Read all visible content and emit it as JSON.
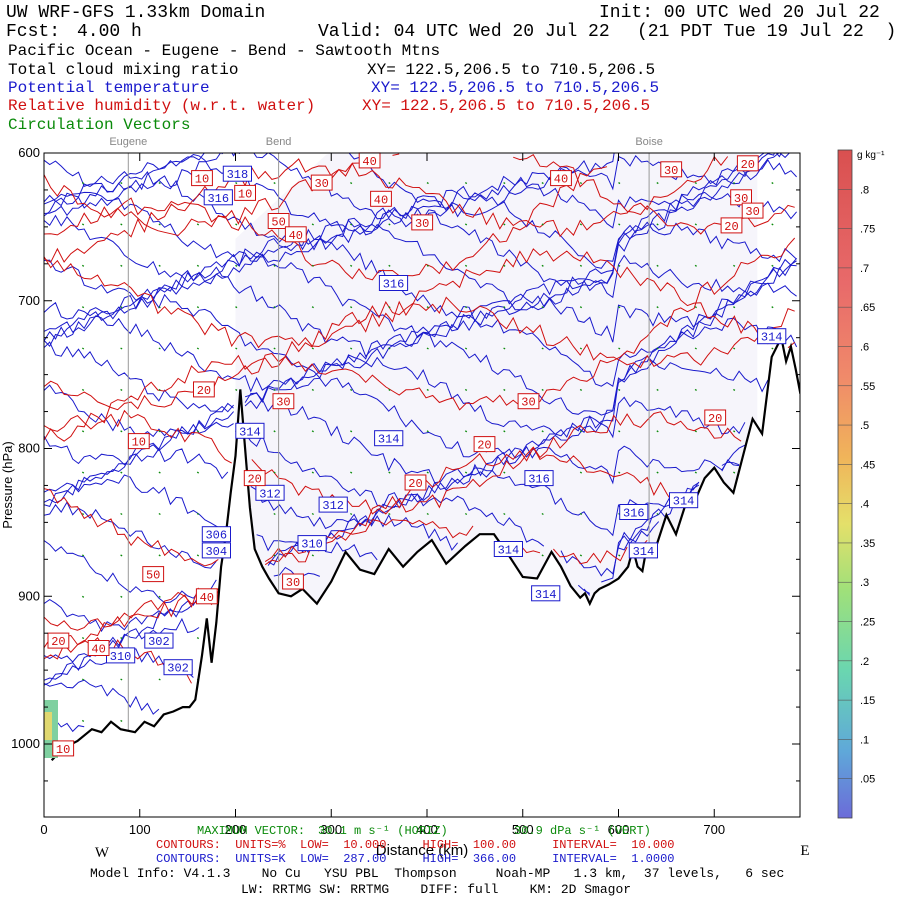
{
  "header": {
    "title": "UW WRF-GFS 1.33km Domain",
    "init": "Init: 00 UTC Wed 20 Jul 22",
    "fcst_label": "Fcst:",
    "fcst_value": "4.00 h",
    "valid": "Valid: 04 UTC Wed 20 Jul 22",
    "valid_local": "(21 PDT Tue 19 Jul 22  )",
    "region": "Pacific Ocean - Eugene - Bend - Sawtooth Mtns",
    "field1": "Total cloud mixing ratio",
    "field1_xy": "XY= 122.5,206.5 to 710.5,206.5",
    "field2": "Potential temperature",
    "field2_xy": "XY= 122.5,206.5 to 710.5,206.5",
    "field3": "Relative humidity (w.r.t. water)",
    "field3_xy": "XY= 122.5,206.5 to 710.5,206.5",
    "field4": "Circulation Vectors"
  },
  "colors": {
    "temperature": "#1a1acc",
    "humidity": "#d01010",
    "vectors": "#0a8a0a",
    "terrain": "#000000",
    "shade": "#f6f5fb"
  },
  "chart_data": {
    "type": "cross-section",
    "xlabel": "Distance (km)",
    "ylabel": "Pressure (hPa)",
    "x_range": [
      0,
      790
    ],
    "y_range": [
      1050,
      600
    ],
    "x_ticks": [
      "0",
      "100",
      "200",
      "300",
      "400",
      "500",
      "600",
      "700"
    ],
    "x_tick_values": [
      0,
      100,
      200,
      300,
      400,
      500,
      600,
      700
    ],
    "y_ticks": [
      "600",
      "700",
      "800",
      "900",
      "1000"
    ],
    "y_tick_values": [
      600,
      700,
      800,
      900,
      1000
    ],
    "locations": [
      {
        "name": "Eugene",
        "km": 88
      },
      {
        "name": "Bend",
        "km": 245
      },
      {
        "name": "Boise",
        "km": 632
      }
    ],
    "dir_west": "W",
    "dir_east": "E",
    "terrain_profile": {
      "km": [
        8,
        20,
        35,
        50,
        60,
        70,
        80,
        95,
        105,
        115,
        125,
        135,
        145,
        152,
        158,
        165,
        170,
        175,
        180,
        185,
        190,
        195,
        200,
        205,
        210,
        215,
        220,
        228,
        235,
        245,
        258,
        270,
        285,
        300,
        315,
        330,
        345,
        360,
        375,
        390,
        405,
        420,
        440,
        455,
        470,
        485,
        500,
        515,
        530,
        540,
        550,
        560,
        565,
        570,
        575,
        580,
        590,
        600,
        610,
        615,
        620,
        625,
        630,
        640,
        650,
        660,
        670,
        680,
        690,
        700,
        710,
        720,
        740,
        750,
        760,
        770,
        775,
        780,
        785,
        790
      ],
      "hPa": [
        1011,
        1003,
        998,
        990,
        992,
        985,
        990,
        992,
        985,
        988,
        980,
        978,
        975,
        975,
        970,
        940,
        915,
        945,
        918,
        880,
        858,
        830,
        805,
        760,
        800,
        840,
        868,
        880,
        888,
        898,
        900,
        895,
        905,
        890,
        870,
        882,
        885,
        868,
        880,
        870,
        862,
        878,
        866,
        858,
        858,
        872,
        887,
        888,
        870,
        880,
        893,
        901,
        898,
        905,
        898,
        895,
        892,
        888,
        880,
        868,
        880,
        883,
        865,
        865,
        845,
        858,
        838,
        835,
        820,
        813,
        823,
        830,
        780,
        790,
        738,
        725,
        741,
        731,
        746,
        763
      ]
    },
    "theta_contours": {
      "units": "K",
      "low": "287.00",
      "high": "366.00",
      "interval": "1.0000"
    },
    "rh_contours": {
      "units": "%",
      "low": "10.000",
      "high": "100.00",
      "interval": "10.000"
    },
    "theta_labels": [
      {
        "text": "318",
        "km": 202,
        "hPa": 614
      },
      {
        "text": "316",
        "km": 182,
        "hPa": 630
      },
      {
        "text": "316",
        "km": 365,
        "hPa": 688
      },
      {
        "text": "314",
        "km": 215,
        "hPa": 788
      },
      {
        "text": "314",
        "km": 360,
        "hPa": 793
      },
      {
        "text": "312",
        "km": 236,
        "hPa": 830
      },
      {
        "text": "312",
        "km": 302,
        "hPa": 838
      },
      {
        "text": "310",
        "km": 280,
        "hPa": 864
      },
      {
        "text": "306",
        "km": 180,
        "hPa": 858
      },
      {
        "text": "304",
        "km": 180,
        "hPa": 869
      },
      {
        "text": "302",
        "km": 120,
        "hPa": 930
      },
      {
        "text": "316",
        "km": 517,
        "hPa": 820
      },
      {
        "text": "316",
        "km": 616,
        "hPa": 843
      },
      {
        "text": "314",
        "km": 668,
        "hPa": 835
      },
      {
        "text": "314",
        "km": 485,
        "hPa": 868
      },
      {
        "text": "314",
        "km": 524,
        "hPa": 898
      },
      {
        "text": "314",
        "km": 626,
        "hPa": 869
      },
      {
        "text": "314",
        "km": 760,
        "hPa": 724
      },
      {
        "text": "310",
        "km": 80,
        "hPa": 940
      },
      {
        "text": "302",
        "km": 140,
        "hPa": 948
      }
    ],
    "rh_labels": [
      {
        "text": "10",
        "km": 165,
        "hPa": 617
      },
      {
        "text": "10",
        "km": 210,
        "hPa": 627
      },
      {
        "text": "30",
        "km": 290,
        "hPa": 620
      },
      {
        "text": "40",
        "km": 340,
        "hPa": 605
      },
      {
        "text": "40",
        "km": 540,
        "hPa": 617
      },
      {
        "text": "30",
        "km": 655,
        "hPa": 611
      },
      {
        "text": "20",
        "km": 735,
        "hPa": 607
      },
      {
        "text": "40",
        "km": 352,
        "hPa": 631
      },
      {
        "text": "30",
        "km": 395,
        "hPa": 647
      },
      {
        "text": "50",
        "km": 245,
        "hPa": 646
      },
      {
        "text": "40",
        "km": 263,
        "hPa": 655
      },
      {
        "text": "30",
        "km": 728,
        "hPa": 630
      },
      {
        "text": "30",
        "km": 740,
        "hPa": 639
      },
      {
        "text": "20",
        "km": 718,
        "hPa": 649
      },
      {
        "text": "20",
        "km": 167,
        "hPa": 760
      },
      {
        "text": "30",
        "km": 250,
        "hPa": 768
      },
      {
        "text": "10",
        "km": 99,
        "hPa": 795
      },
      {
        "text": "20",
        "km": 220,
        "hPa": 820
      },
      {
        "text": "20",
        "km": 388,
        "hPa": 823
      },
      {
        "text": "20",
        "km": 460,
        "hPa": 797
      },
      {
        "text": "30",
        "km": 506,
        "hPa": 768
      },
      {
        "text": "20",
        "km": 701,
        "hPa": 779
      },
      {
        "text": "50",
        "km": 114,
        "hPa": 885
      },
      {
        "text": "40",
        "km": 170,
        "hPa": 900
      },
      {
        "text": "30",
        "km": 260,
        "hPa": 890
      },
      {
        "text": "20",
        "km": 15,
        "hPa": 930
      },
      {
        "text": "40",
        "km": 57,
        "hPa": 935
      },
      {
        "text": "10",
        "km": 20,
        "hPa": 1003
      }
    ],
    "colorbar": {
      "units": "g kg⁻¹",
      "ticks": [
        ".8",
        ".75",
        ".7",
        ".65",
        ".6",
        ".55",
        ".5",
        ".45",
        ".4",
        ".35",
        ".3",
        ".25",
        ".2",
        ".15",
        ".1",
        ".05"
      ],
      "tick_values": [
        0.8,
        0.75,
        0.7,
        0.65,
        0.6,
        0.55,
        0.5,
        0.45,
        0.4,
        0.35,
        0.3,
        0.25,
        0.2,
        0.15,
        0.1,
        0.05
      ],
      "range": [
        0,
        0.85
      ]
    }
  },
  "footer": {
    "max_vector_label": "MAXIMUM VECTOR:",
    "max_vector_h": "30.1 m s⁻¹ (HORIZ)",
    "max_vector_v": "30.9 dPa s⁻¹ (VERT)",
    "rh_line": "CONTOURS:  UNITS=%  LOW=  10.000     HIGH=  100.00     INTERVAL=  10.000",
    "theta_line": "CONTOURS:  UNITS=K  LOW=  287.00     HIGH=  366.00     INTERVAL=  1.0000",
    "model_line": "Model Info: V4.1.3    No Cu   YSU PBL  Thompson     Noah-MP   1.3 km,  37 levels,   6 sec",
    "model_line2": "LW: RRTMG SW: RRTMG    DIFF: full    KM: 2D Smagor"
  }
}
